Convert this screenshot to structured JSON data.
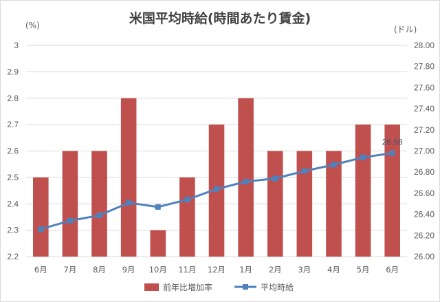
{
  "chart_data": {
    "type": "bar",
    "title": "米国平均時給(時間あたり賃金)",
    "ylabel_left": "(%)",
    "ylabel_right": "(ドル)",
    "categories": [
      "6月",
      "7月",
      "8月",
      "9月",
      "10月",
      "11月",
      "12月",
      "1月",
      "2月",
      "3月",
      "4月",
      "5月",
      "6月"
    ],
    "ylim_left": [
      2.2,
      3.0
    ],
    "ylim_right": [
      26.0,
      28.0
    ],
    "yticks_left": [
      "2.2",
      "2.3",
      "2.4",
      "2.5",
      "2.6",
      "2.7",
      "2.8",
      "2.9",
      "3"
    ],
    "yticks_right": [
      "26.00",
      "26.20",
      "26.40",
      "26.60",
      "26.80",
      "27.00",
      "27.20",
      "27.40",
      "27.60",
      "27.80",
      "28.00"
    ],
    "grid": true,
    "legend_position": "bottom",
    "series": [
      {
        "name": "前年比増加率",
        "kind": "bar",
        "axis": "left",
        "color": "#c0504d",
        "values": [
          2.5,
          2.6,
          2.6,
          2.8,
          2.3,
          2.5,
          2.7,
          2.8,
          2.6,
          2.6,
          2.6,
          2.7,
          2.7
        ]
      },
      {
        "name": "平均時給",
        "kind": "line",
        "axis": "right",
        "color": "#4f81bd",
        "values": [
          26.26,
          26.34,
          26.39,
          26.51,
          26.47,
          26.54,
          26.64,
          26.71,
          26.74,
          26.81,
          26.87,
          26.94,
          26.98
        ],
        "data_labels": [
          {
            "index": 12,
            "text": "26.98"
          }
        ]
      }
    ]
  }
}
